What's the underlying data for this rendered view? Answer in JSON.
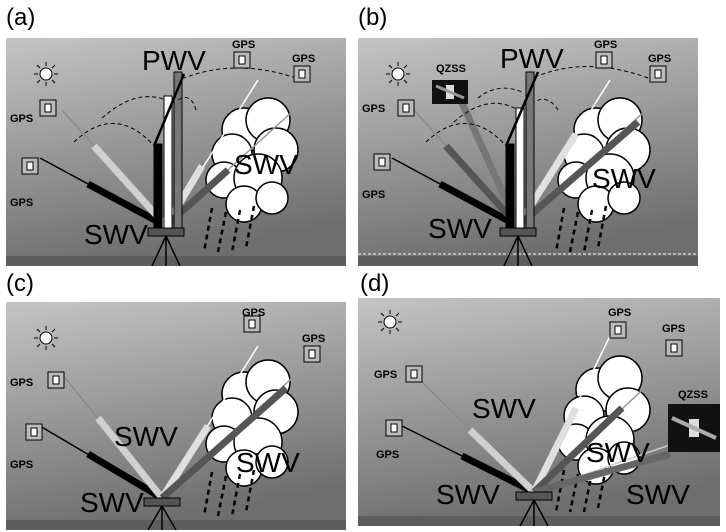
{
  "figure": {
    "panels": [
      {
        "label": "(a)",
        "texts": {
          "pwv": "PWV",
          "swv_left": "SWV",
          "swv_cloud": "SWV"
        },
        "satellites": [
          {
            "name": "GPS",
            "icon": "gps-satellite-icon"
          },
          {
            "name": "GPS",
            "icon": "gps-satellite-icon"
          },
          {
            "name": "GPS",
            "icon": "gps-satellite-icon"
          },
          {
            "name": "GPS",
            "icon": "gps-satellite-icon"
          }
        ]
      },
      {
        "label": "(b)",
        "texts": {
          "pwv": "PWV",
          "swv_left": "SWV",
          "swv_cloud": "SWV",
          "qzss": "QZSS"
        },
        "satellites": [
          {
            "name": "GPS",
            "icon": "gps-satellite-icon"
          },
          {
            "name": "GPS",
            "icon": "gps-satellite-icon"
          },
          {
            "name": "GPS",
            "icon": "gps-satellite-icon"
          },
          {
            "name": "GPS",
            "icon": "gps-satellite-icon"
          }
        ]
      },
      {
        "label": "(c)",
        "texts": {
          "swv_mid": "SWV",
          "swv_left": "SWV",
          "swv_cloud": "SWV"
        },
        "satellites": [
          {
            "name": "GPS",
            "icon": "gps-satellite-icon"
          },
          {
            "name": "GPS",
            "icon": "gps-satellite-icon"
          },
          {
            "name": "GPS",
            "icon": "gps-satellite-icon"
          },
          {
            "name": "GPS",
            "icon": "gps-satellite-icon"
          }
        ]
      },
      {
        "label": "(d)",
        "texts": {
          "swv_mid": "SWV",
          "swv_left": "SWV",
          "swv_cloud": "SWV",
          "swv_right": "SWV",
          "qzss": "QZSS"
        },
        "satellites": [
          {
            "name": "GPS",
            "icon": "gps-satellite-icon"
          },
          {
            "name": "GPS",
            "icon": "gps-satellite-icon"
          },
          {
            "name": "GPS",
            "icon": "gps-satellite-icon"
          },
          {
            "name": "GPS",
            "icon": "gps-satellite-icon"
          }
        ]
      }
    ],
    "colors": {
      "sky_top": "#b9b9b9",
      "sky_bottom": "#7a7a7a",
      "cloud": "#ffffff",
      "signal_dark": "#000000",
      "signal_mid": "#6f6f6f",
      "signal_light": "#d6d6d6"
    }
  }
}
